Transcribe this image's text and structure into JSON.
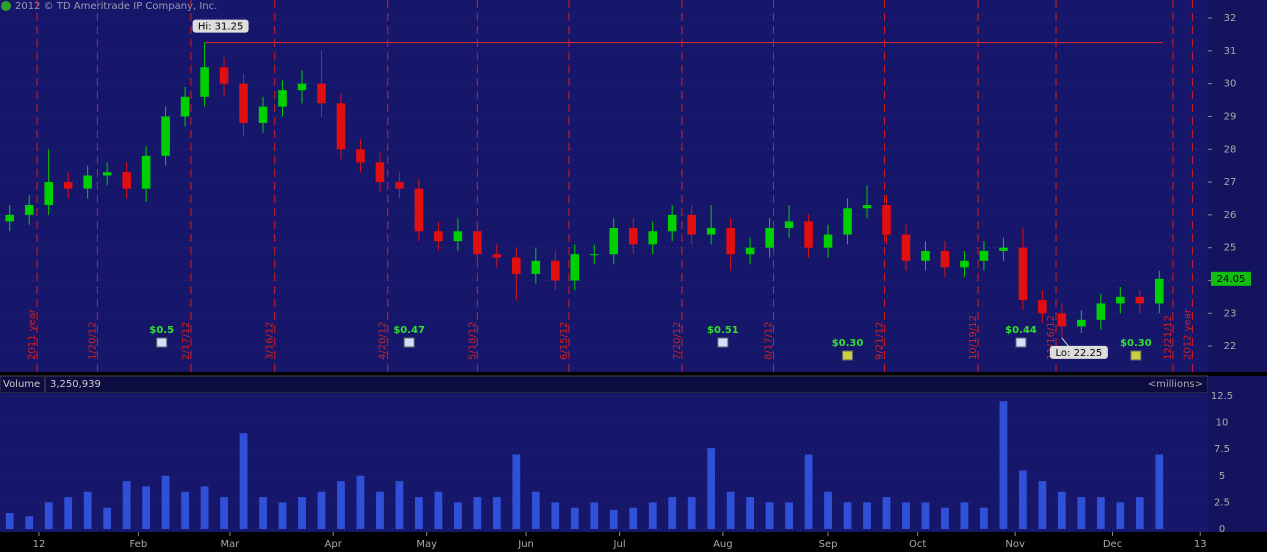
{
  "copyright": "2012 © TD Ameritrade IP Company, Inc.",
  "volume_header": {
    "label": "Volume",
    "readout": "3,250,939",
    "unit": "<millions>"
  },
  "chart_data": [
    {
      "type": "candlestick",
      "open": [
        25.8,
        26.0,
        26.3,
        27.0,
        26.8,
        27.2,
        27.3,
        26.8,
        27.8,
        29.0,
        29.6,
        30.5,
        30.0,
        28.8,
        29.3,
        29.8,
        30.0,
        29.4,
        28.0,
        27.6,
        27.0,
        26.8,
        25.5,
        25.2,
        25.5,
        24.8,
        24.7,
        24.2,
        24.6,
        24.0,
        24.8,
        24.8,
        25.6,
        25.1,
        25.5,
        26.0,
        25.4,
        25.6,
        24.8,
        25.0,
        25.6,
        25.8,
        25.0,
        25.4,
        26.2,
        26.3,
        25.4,
        24.6,
        24.9,
        24.4,
        24.6,
        24.9,
        25.0,
        23.4,
        23.0,
        22.6,
        22.8,
        23.3,
        23.5,
        23.3
      ],
      "high": [
        26.3,
        26.6,
        28.0,
        27.3,
        27.5,
        27.6,
        27.6,
        28.1,
        29.3,
        29.9,
        31.25,
        30.8,
        30.3,
        29.6,
        30.1,
        30.4,
        31.0,
        29.7,
        28.3,
        27.9,
        27.3,
        27.1,
        25.8,
        25.9,
        25.8,
        25.1,
        25.0,
        25.0,
        24.9,
        25.1,
        25.1,
        25.9,
        25.9,
        25.8,
        26.3,
        26.3,
        26.3,
        25.9,
        25.3,
        25.9,
        26.3,
        26.0,
        25.7,
        26.5,
        26.9,
        26.6,
        25.7,
        25.2,
        25.2,
        24.9,
        25.2,
        25.3,
        25.6,
        23.7,
        23.3,
        23.1,
        23.6,
        23.8,
        23.7,
        24.3
      ],
      "low": [
        25.5,
        25.7,
        26.0,
        26.5,
        26.5,
        26.9,
        26.5,
        26.4,
        27.5,
        28.7,
        29.3,
        29.6,
        28.4,
        28.5,
        29.0,
        29.4,
        29.0,
        27.7,
        27.3,
        26.7,
        26.5,
        25.2,
        24.9,
        24.9,
        24.5,
        24.4,
        23.4,
        23.9,
        23.7,
        23.7,
        24.5,
        24.5,
        24.8,
        24.8,
        25.2,
        25.1,
        25.1,
        24.3,
        24.5,
        24.7,
        25.3,
        24.7,
        24.7,
        25.1,
        25.9,
        25.1,
        24.3,
        24.3,
        24.1,
        24.1,
        24.3,
        24.6,
        23.1,
        22.7,
        22.25,
        22.4,
        22.5,
        23.0,
        23.0,
        23.0
      ],
      "close": [
        26.0,
        26.3,
        27.0,
        26.8,
        27.2,
        27.3,
        26.8,
        27.8,
        29.0,
        29.6,
        30.5,
        30.0,
        28.8,
        29.3,
        29.8,
        30.0,
        29.4,
        28.0,
        27.6,
        27.0,
        26.8,
        25.5,
        25.2,
        25.5,
        24.8,
        24.7,
        24.2,
        24.6,
        24.0,
        24.8,
        24.8,
        25.6,
        25.1,
        25.5,
        26.0,
        25.4,
        25.6,
        24.8,
        25.0,
        25.6,
        25.8,
        25.0,
        25.4,
        26.2,
        26.3,
        25.4,
        24.6,
        24.9,
        24.4,
        24.6,
        24.9,
        25.0,
        23.4,
        23.0,
        22.6,
        22.8,
        23.3,
        23.5,
        23.3,
        24.05
      ],
      "up_color": "#00d000",
      "down_color": "#e01010",
      "xlim": [
        -0.5,
        61.5
      ],
      "ylim": [
        21.21,
        32.55
      ],
      "yticks": [
        22,
        23,
        24,
        25,
        26,
        27,
        28,
        29,
        30,
        31,
        32
      ],
      "grid": true,
      "last_price": 24.05,
      "high_marker": {
        "value": 31.25,
        "label": "Hi: 31.25",
        "x": 10
      },
      "low_marker": {
        "value": 22.25,
        "label": "Lo: 22.25",
        "x": 54
      },
      "events": [
        {
          "x": 1.4,
          "label": "2011 year"
        },
        {
          "x": 4.5,
          "label": "1/20/12"
        },
        {
          "x": 9.3,
          "label": "2/17/12"
        },
        {
          "x": 13.6,
          "label": "3/16/12"
        },
        {
          "x": 19.4,
          "label": "4/20/12"
        },
        {
          "x": 24.0,
          "label": "5/18/12"
        },
        {
          "x": 28.7,
          "label": "6/15/12"
        },
        {
          "x": 34.5,
          "label": "7/20/12"
        },
        {
          "x": 39.2,
          "label": "8/17/12"
        },
        {
          "x": 44.9,
          "label": "9/21/12"
        },
        {
          "x": 49.7,
          "label": "10/19/12"
        },
        {
          "x": 53.7,
          "label": "11/16/12"
        },
        {
          "x": 59.7,
          "label": "12/21/12"
        },
        {
          "x": 60.7,
          "label": "2012 year"
        }
      ],
      "dividends": [
        {
          "x": 7.8,
          "value": 0.5,
          "label": "$0.5"
        },
        {
          "x": 20.5,
          "value": 0.47,
          "label": "$0.47"
        },
        {
          "x": 36.6,
          "value": 0.51,
          "label": "$0.51"
        },
        {
          "x": 43.0,
          "value": 0.3,
          "label": "$0.30"
        },
        {
          "x": 51.9,
          "value": 0.44,
          "label": "$0.44"
        },
        {
          "x": 57.8,
          "value": 0.3,
          "label": "$0.30"
        }
      ]
    },
    {
      "type": "bar",
      "values": [
        1.5,
        1.2,
        2.5,
        3,
        3.5,
        2,
        4.5,
        4,
        5,
        3.5,
        4,
        3,
        9,
        3,
        2.5,
        3,
        3.5,
        4.5,
        5,
        3.5,
        4.5,
        3,
        3.5,
        2.5,
        3,
        3,
        7,
        3.5,
        2.5,
        2,
        2.5,
        1.8,
        2,
        2.5,
        3,
        3,
        7.6,
        3.5,
        3,
        2.5,
        2.5,
        7,
        3.5,
        2.5,
        2.5,
        3,
        2.5,
        2.5,
        2,
        2.5,
        2,
        12,
        5.5,
        4.5,
        3.5,
        3,
        3,
        2.5,
        3,
        7
      ],
      "color": "#3050d8",
      "xlim": [
        -0.5,
        61.5
      ],
      "ylim": [
        0,
        12.5
      ],
      "yticks": [
        0,
        2.5,
        5,
        7.5,
        10,
        12.5
      ],
      "xticks": [
        {
          "value": 1.5,
          "label": "12"
        },
        {
          "value": 6.6,
          "label": "Feb"
        },
        {
          "value": 11.3,
          "label": "Mar"
        },
        {
          "value": 16.6,
          "label": "Apr"
        },
        {
          "value": 21.4,
          "label": "May"
        },
        {
          "value": 26.5,
          "label": "Jun"
        },
        {
          "value": 31.3,
          "label": "Jul"
        },
        {
          "value": 36.6,
          "label": "Aug"
        },
        {
          "value": 42.0,
          "label": "Sep"
        },
        {
          "value": 46.6,
          "label": "Oct"
        },
        {
          "value": 51.6,
          "label": "Nov"
        },
        {
          "value": 56.6,
          "label": "Dec"
        },
        {
          "value": 61.1,
          "label": "13"
        }
      ]
    }
  ]
}
